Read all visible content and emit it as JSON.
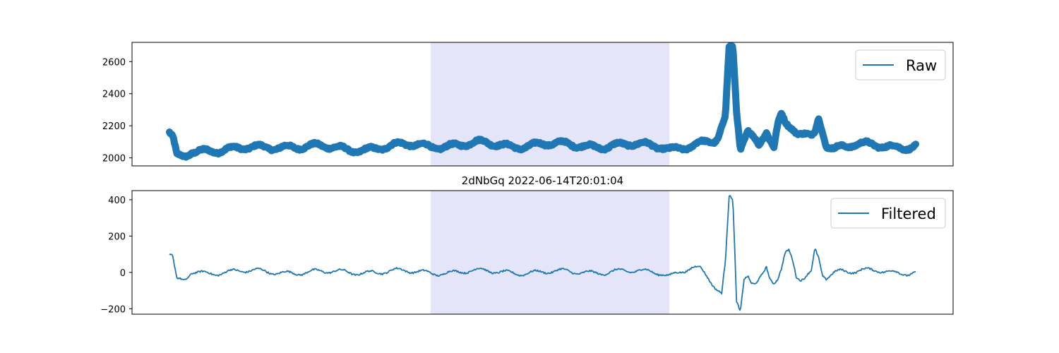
{
  "chart_data": [
    {
      "type": "line",
      "title": "",
      "xlabel": "",
      "ylabel": "",
      "ylim": [
        1950,
        2720
      ],
      "yticks": [
        2000,
        2200,
        2400,
        2600
      ],
      "ytick_labels": [
        "2000",
        "2200",
        "2400",
        "2600"
      ],
      "x_ticks_visible": false,
      "grid": false,
      "legend_position": "upper right",
      "highlight_span": {
        "x_range": [
          0.35,
          0.67
        ],
        "color": "#e5e5fa"
      },
      "series": [
        {
          "name": "Raw",
          "color": "#1f77b4",
          "trace_style": "thick noisy band",
          "x": [
            0.0,
            0.005,
            0.01,
            0.02,
            0.03,
            0.05,
            0.08,
            0.12,
            0.16,
            0.2,
            0.24,
            0.28,
            0.32,
            0.35,
            0.38,
            0.42,
            0.46,
            0.5,
            0.54,
            0.58,
            0.62,
            0.66,
            0.67,
            0.7,
            0.73,
            0.735,
            0.745,
            0.75,
            0.755,
            0.76,
            0.765,
            0.77,
            0.775,
            0.78,
            0.79,
            0.8,
            0.81,
            0.815,
            0.82,
            0.825,
            0.83,
            0.835,
            0.84,
            0.85,
            0.86,
            0.865,
            0.87,
            0.875,
            0.88,
            0.885,
            0.89,
            0.9,
            0.92,
            0.95,
            0.98,
            1.0
          ],
          "values": [
            2150,
            2110,
            2000,
            2005,
            2040,
            2050,
            2055,
            2060,
            2075,
            2070,
            2050,
            2065,
            2080,
            2075,
            2080,
            2090,
            2075,
            2085,
            2080,
            2075,
            2080,
            2075,
            2060,
            2075,
            2100,
            2120,
            2250,
            2680,
            2690,
            2300,
            2070,
            2130,
            2180,
            2150,
            2075,
            2170,
            2070,
            2200,
            2260,
            2200,
            2180,
            2175,
            2160,
            2150,
            2130,
            2160,
            2260,
            2180,
            2090,
            2075,
            2060,
            2070,
            2080,
            2075,
            2070,
            2080
          ]
        }
      ]
    },
    {
      "type": "line",
      "title": "2dNbGq 2022-06-14T20:01:04",
      "xlabel": "",
      "ylabel": "",
      "ylim": [
        -230,
        450
      ],
      "yticks": [
        -200,
        0,
        200,
        400
      ],
      "ytick_labels": [
        "−200",
        "0",
        "200",
        "400"
      ],
      "x_ticks_visible": false,
      "grid": false,
      "legend_position": "upper right",
      "highlight_span": {
        "x_range": [
          0.35,
          0.67
        ],
        "color": "#e5e5fa"
      },
      "series": [
        {
          "name": "Filtered",
          "color": "#1f77b4",
          "trace_style": "oscillating line",
          "x": [
            0.0,
            0.004,
            0.01,
            0.02,
            0.03,
            0.05,
            0.1,
            0.2,
            0.3,
            0.35,
            0.4,
            0.5,
            0.6,
            0.66,
            0.67,
            0.7,
            0.71,
            0.72,
            0.73,
            0.735,
            0.74,
            0.745,
            0.75,
            0.755,
            0.76,
            0.765,
            0.77,
            0.775,
            0.78,
            0.785,
            0.79,
            0.795,
            0.8,
            0.805,
            0.81,
            0.815,
            0.82,
            0.825,
            0.83,
            0.835,
            0.84,
            0.845,
            0.85,
            0.86,
            0.865,
            0.87,
            0.875,
            0.88,
            0.885,
            0.89,
            0.9,
            0.92,
            0.95,
            0.98,
            1.0
          ],
          "values": [
            90,
            80,
            -50,
            -45,
            5,
            0,
            5,
            0,
            5,
            0,
            5,
            0,
            5,
            0,
            -15,
            30,
            20,
            -30,
            -80,
            -100,
            -120,
            50,
            410,
            400,
            -150,
            -200,
            -20,
            -10,
            -60,
            -70,
            -40,
            0,
            40,
            -30,
            -60,
            -50,
            0,
            90,
            115,
            70,
            -20,
            -40,
            -40,
            0,
            130,
            90,
            0,
            -20,
            -10,
            0,
            10,
            0,
            10,
            0,
            5
          ]
        }
      ]
    }
  ]
}
